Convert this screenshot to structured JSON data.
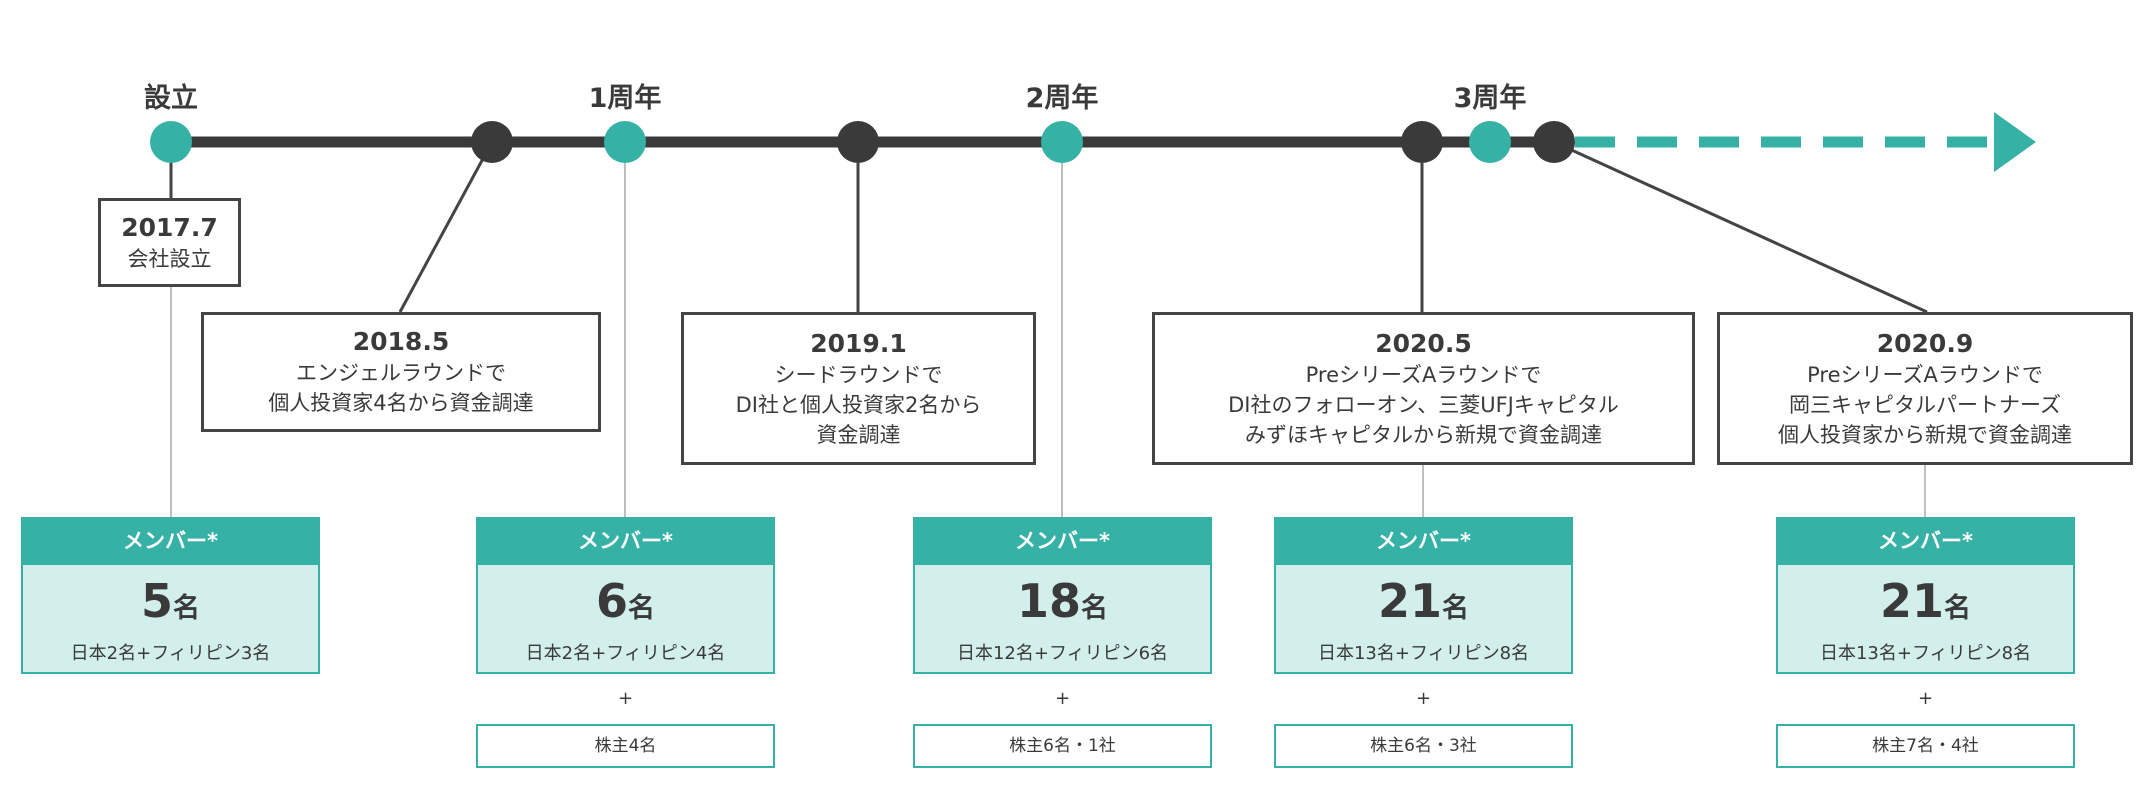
{
  "milestones": [
    "設立",
    "1周年",
    "2周年",
    "3周年"
  ],
  "events": [
    {
      "date": "2017.7",
      "lines": [
        "会社設立"
      ]
    },
    {
      "date": "2018.5",
      "lines": [
        "エンジェルラウンドで",
        "個人投資家4名から資金調達"
      ]
    },
    {
      "date": "2019.1",
      "lines": [
        "シードラウンドで",
        "DI社と個人投資家2名から",
        "資金調達"
      ]
    },
    {
      "date": "2020.5",
      "lines": [
        "PreシリーズAラウンドで",
        "DI社のフォローオン、三菱UFJキャピタル",
        "みずほキャピタルから新規で資金調達"
      ]
    },
    {
      "date": "2020.9",
      "lines": [
        "PreシリーズAラウンドで",
        "岡三キャピタルパートナーズ",
        "個人投資家から新規で資金調達"
      ]
    }
  ],
  "members": [
    {
      "header": "メンバー*",
      "count": "5",
      "unit": "名",
      "breakdown": "日本2名+フィリピン3名"
    },
    {
      "header": "メンバー*",
      "count": "6",
      "unit": "名",
      "breakdown": "日本2名+フィリピン4名",
      "plus": "+",
      "shareholders": "株主4名"
    },
    {
      "header": "メンバー*",
      "count": "18",
      "unit": "名",
      "breakdown": "日本12名+フィリピン6名",
      "plus": "+",
      "shareholders": "株主6名・1社"
    },
    {
      "header": "メンバー*",
      "count": "21",
      "unit": "名",
      "breakdown": "日本13名+フィリピン8名",
      "plus": "+",
      "shareholders": "株主6名・3社"
    },
    {
      "header": "メンバー*",
      "count": "21",
      "unit": "名",
      "breakdown": "日本13名+フィリピン8名",
      "plus": "+",
      "shareholders": "株主7名・4社"
    }
  ]
}
